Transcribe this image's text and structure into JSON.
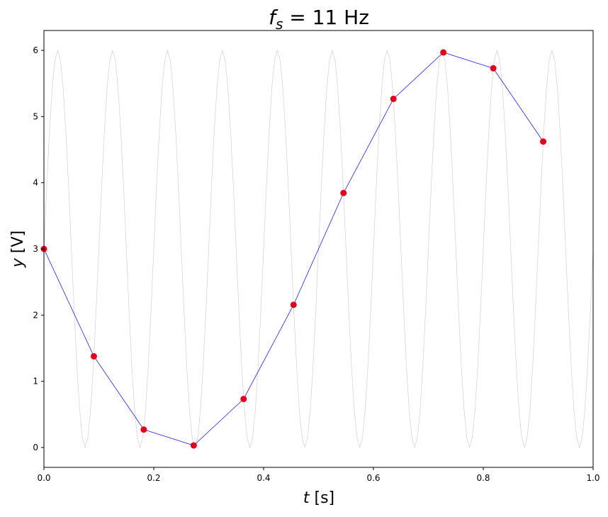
{
  "chart_data": {
    "type": "line",
    "title_symbol": "f",
    "title_subscript": "s",
    "title_rest": " = 11 Hz",
    "x_label_symbol": "t",
    "x_label_rest": " [s]",
    "y_label_symbol": "y",
    "y_label_rest": " [V]",
    "xlim": [
      0,
      1
    ],
    "ylim": [
      -0.3,
      6.3
    ],
    "xticks": [
      {
        "value": 0,
        "label": "0.0"
      },
      {
        "value": 0.2,
        "label": "0.2"
      },
      {
        "value": 0.4,
        "label": "0.4"
      },
      {
        "value": 0.6,
        "label": "0.6"
      },
      {
        "value": 0.8,
        "label": "0.8"
      },
      {
        "value": 1,
        "label": "1.0"
      }
    ],
    "yticks": [
      0,
      1,
      2,
      3,
      4,
      5,
      6
    ],
    "curve": {
      "color": "#d0d0d0",
      "x": [
        0,
        0.005,
        0.01,
        0.015,
        0.02,
        0.025,
        0.03,
        0.035,
        0.04,
        0.045,
        0.05,
        0.055,
        0.06,
        0.065,
        0.07,
        0.075,
        0.08,
        0.085,
        0.09,
        0.095,
        0.1,
        0.105,
        0.11,
        0.115,
        0.12,
        0.125,
        0.13,
        0.135,
        0.14,
        0.145,
        0.15,
        0.155,
        0.16,
        0.165,
        0.17,
        0.175,
        0.18,
        0.185,
        0.19,
        0.195,
        0.2,
        0.205,
        0.21,
        0.215,
        0.22,
        0.225,
        0.23,
        0.235,
        0.24,
        0.245,
        0.25,
        0.255,
        0.26,
        0.265,
        0.27,
        0.275,
        0.28,
        0.285,
        0.29,
        0.295,
        0.3,
        0.305,
        0.31,
        0.315,
        0.32,
        0.325,
        0.33,
        0.335,
        0.34,
        0.345,
        0.35,
        0.355,
        0.36,
        0.365,
        0.37,
        0.375,
        0.38,
        0.385,
        0.39,
        0.395,
        0.4,
        0.405,
        0.41,
        0.415,
        0.42,
        0.425,
        0.43,
        0.435,
        0.44,
        0.445,
        0.45,
        0.455,
        0.46,
        0.465,
        0.47,
        0.475,
        0.48,
        0.485,
        0.49,
        0.495,
        0.5,
        0.505,
        0.51,
        0.515,
        0.52,
        0.525,
        0.53,
        0.535,
        0.54,
        0.545,
        0.55,
        0.555,
        0.56,
        0.565,
        0.57,
        0.575,
        0.58,
        0.585,
        0.59,
        0.595,
        0.6,
        0.605,
        0.61,
        0.615,
        0.62,
        0.625,
        0.63,
        0.635,
        0.64,
        0.645,
        0.65,
        0.655,
        0.66,
        0.665,
        0.67,
        0.675,
        0.68,
        0.685,
        0.69,
        0.695,
        0.7,
        0.705,
        0.71,
        0.715,
        0.72,
        0.725,
        0.73,
        0.735,
        0.74,
        0.745,
        0.75,
        0.755,
        0.76,
        0.765,
        0.77,
        0.775,
        0.78,
        0.785,
        0.79,
        0.795,
        0.8,
        0.805,
        0.81,
        0.815,
        0.82,
        0.825,
        0.83,
        0.835,
        0.84,
        0.845,
        0.85,
        0.855,
        0.86,
        0.865,
        0.87,
        0.875,
        0.88,
        0.885,
        0.89,
        0.895,
        0.9,
        0.905,
        0.91,
        0.915,
        0.92,
        0.925,
        0.93,
        0.935,
        0.94,
        0.945,
        0.95,
        0.955,
        0.96,
        0.965,
        0.97,
        0.975,
        0.98,
        0.985,
        0.99,
        0.995,
        1
      ],
      "values": [
        3,
        3.93,
        4.76,
        5.43,
        5.85,
        6,
        5.85,
        5.43,
        4.76,
        3.93,
        3,
        2.07,
        1.24,
        0.57,
        0.15,
        0,
        0.15,
        0.57,
        1.24,
        2.07,
        3,
        3.93,
        4.76,
        5.43,
        5.85,
        6,
        5.85,
        5.43,
        4.76,
        3.93,
        3,
        2.07,
        1.24,
        0.57,
        0.15,
        0,
        0.15,
        0.57,
        1.24,
        2.07,
        3,
        3.93,
        4.76,
        5.43,
        5.85,
        6,
        5.85,
        5.43,
        4.76,
        3.93,
        3,
        2.07,
        1.24,
        0.57,
        0.15,
        0,
        0.15,
        0.57,
        1.24,
        2.07,
        3,
        3.93,
        4.76,
        5.43,
        5.85,
        6,
        5.85,
        5.43,
        4.76,
        3.93,
        3,
        2.07,
        1.24,
        0.57,
        0.15,
        0,
        0.15,
        0.57,
        1.24,
        2.07,
        3,
        3.93,
        4.76,
        5.43,
        5.85,
        6,
        5.85,
        5.43,
        4.76,
        3.93,
        3,
        2.07,
        1.24,
        0.57,
        0.15,
        0,
        0.15,
        0.57,
        1.24,
        2.07,
        3,
        3.93,
        4.76,
        5.43,
        5.85,
        6,
        5.85,
        5.43,
        4.76,
        3.93,
        3,
        2.07,
        1.24,
        0.57,
        0.15,
        0,
        0.15,
        0.57,
        1.24,
        2.07,
        3,
        3.93,
        4.76,
        5.43,
        5.85,
        6,
        5.85,
        5.43,
        4.76,
        3.93,
        3,
        2.07,
        1.24,
        0.57,
        0.15,
        0,
        0.15,
        0.57,
        1.24,
        2.07,
        3,
        3.93,
        4.76,
        5.43,
        5.85,
        6,
        5.85,
        5.43,
        4.76,
        3.93,
        3,
        2.07,
        1.24,
        0.57,
        0.15,
        0,
        0.15,
        0.57,
        1.24,
        2.07,
        3,
        3.93,
        4.76,
        5.43,
        5.85,
        6,
        5.85,
        5.43,
        4.76,
        3.93,
        3,
        2.07,
        1.24,
        0.57,
        0.15,
        0,
        0.15,
        0.57,
        1.24,
        2.07,
        3,
        3.93,
        4.76,
        5.43,
        5.85,
        6,
        5.85,
        5.43,
        4.76,
        3.93,
        3,
        2.07,
        1.24,
        0.57,
        0.15,
        0,
        0.15,
        0.57,
        1.24,
        2.07,
        3
      ]
    },
    "samples": {
      "line_color": "#0000ff",
      "marker_color": "#e0001b",
      "x": [
        0,
        0.0909,
        0.1818,
        0.2727,
        0.3636,
        0.4545,
        0.5455,
        0.6364,
        0.7273,
        0.8182,
        0.9091
      ],
      "values": [
        3,
        1.378,
        0.271,
        0.031,
        0.733,
        2.155,
        3.845,
        5.267,
        5.969,
        5.729,
        4.622
      ]
    }
  }
}
